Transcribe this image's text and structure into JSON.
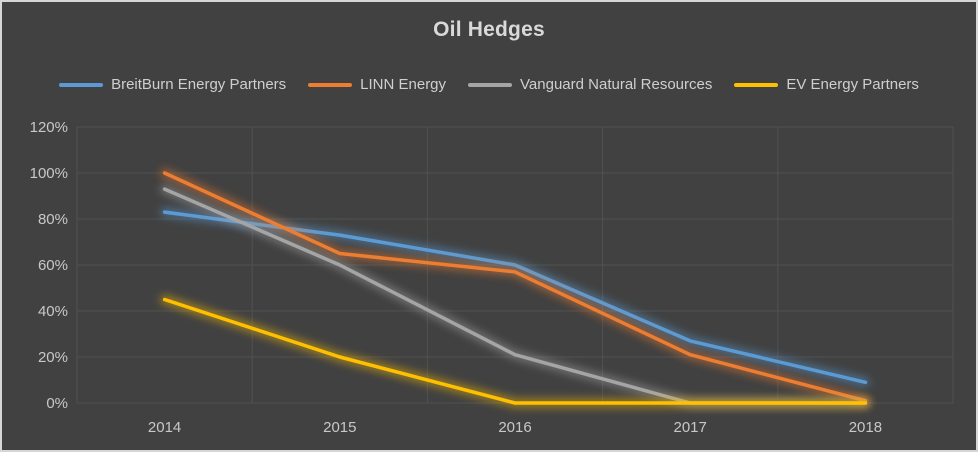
{
  "window": {
    "background_color": "#414141",
    "border_color": "#d6d6d6",
    "gridline_color": "#515151",
    "tick_label_color": "#c8c8c8",
    "title_color": "#d9d9d9",
    "legend_text_color": "#cfcfcf"
  },
  "chart_data": {
    "type": "line",
    "title": "Oil Hedges",
    "categories": [
      "2014",
      "2015",
      "2016",
      "2017",
      "2018"
    ],
    "series": [
      {
        "name": "BreitBurn Energy Partners",
        "color": "#5b9bd5",
        "values": [
          83,
          73,
          60,
          27,
          9
        ]
      },
      {
        "name": "LINN Energy",
        "color": "#ed7d31",
        "values": [
          100,
          65,
          57,
          21,
          1
        ]
      },
      {
        "name": "Vanguard Natural Resources",
        "color": "#a5a5a5",
        "values": [
          93,
          60,
          21,
          0,
          0
        ]
      },
      {
        "name": "EV Energy Partners",
        "color": "#ffc000",
        "values": [
          45,
          20,
          0,
          0,
          0
        ]
      }
    ],
    "xlabel": "",
    "ylabel": "",
    "ylim": [
      0,
      120
    ],
    "y_tick_step": 20,
    "y_tick_labels": [
      "0%",
      "20%",
      "40%",
      "60%",
      "80%",
      "100%",
      "120%"
    ],
    "grid": true,
    "legend_position": "top",
    "line_glow": true
  }
}
